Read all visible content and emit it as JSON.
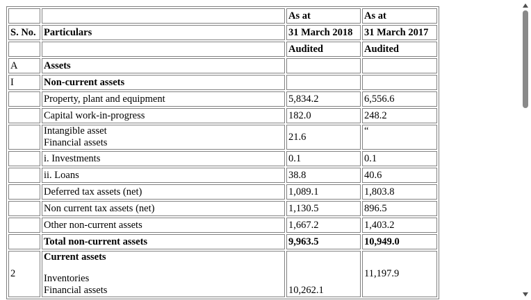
{
  "table": {
    "header": {
      "row1": {
        "sno": "",
        "particulars": "",
        "col_2018": "As at",
        "col_2017": "As at"
      },
      "row2": {
        "sno": "S. No.",
        "particulars": "Particulars",
        "col_2018": "31 March 2018",
        "col_2017": "31 March 2017"
      },
      "row3": {
        "sno": "",
        "particulars": "",
        "col_2018": "Audited",
        "col_2017": "Audited"
      }
    },
    "rows": [
      {
        "sno": "A",
        "particulars": "Assets",
        "v2018": "",
        "v2017": ""
      },
      {
        "sno": "I",
        "particulars": "Non-current assets",
        "v2018": "",
        "v2017": ""
      },
      {
        "sno": "",
        "particulars": "Property, plant and equipment",
        "v2018": "5,834.2",
        "v2017": "6,556.6"
      },
      {
        "sno": "",
        "particulars": "Capital work-in-progress",
        "v2018": "182.0",
        "v2017": "248.2"
      },
      {
        "sno": "",
        "particulars_line1": "Intangible asset",
        "particulars_line2": "Financial assets",
        "v2018": "21.6",
        "v2017": "“"
      },
      {
        "sno": "",
        "particulars": "i. Investments",
        "v2018": "0.1",
        "v2017": "0.1"
      },
      {
        "sno": "",
        "particulars": "ii. Loans",
        "v2018": "38.8",
        "v2017": "40.6"
      },
      {
        "sno": "",
        "particulars": "Deferred tax assets (net)",
        "v2018": "1,089.1",
        "v2017": "1,803.8"
      },
      {
        "sno": "",
        "particulars": "Non current tax assets (net)",
        "v2018": "1,130.5",
        "v2017": "896.5"
      },
      {
        "sno": "",
        "particulars": "Other non-current assets",
        "v2018": "1,667.2",
        "v2017": "1,403.2"
      },
      {
        "sno": "",
        "particulars": "Total non-current assets",
        "v2018": "9,963.5",
        "v2017": "10,949.0"
      },
      {
        "sno": "2",
        "particulars_line1": "Current assets",
        "particulars_line2": "Inventories",
        "particulars_line3": "Financial assets",
        "v2018": "10,262.1",
        "v2017": "11,197.9"
      }
    ]
  }
}
